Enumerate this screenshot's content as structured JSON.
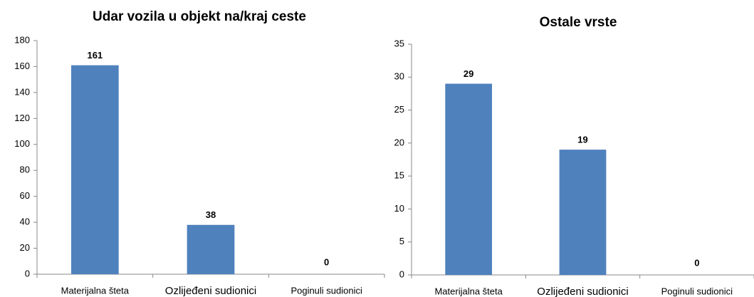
{
  "chart_data": [
    {
      "type": "bar",
      "title": "Udar vozila u objekt na/kraj ceste",
      "categories": [
        "Materijalna šteta",
        "Ozlijeđeni sudionici",
        "Poginuli sudionici"
      ],
      "values": [
        161,
        38,
        0
      ],
      "color": "#4f81bd",
      "ylim": [
        0,
        180
      ],
      "yticks": [
        0,
        20,
        40,
        60,
        80,
        100,
        120,
        140,
        160,
        180
      ],
      "grid": false
    },
    {
      "type": "bar",
      "title": "Ostale vrste",
      "categories": [
        "Materijalna šteta",
        "Ozlijeđeni sudionici",
        "Poginuli sudionici"
      ],
      "values": [
        29,
        19,
        0
      ],
      "color": "#4f81bd",
      "ylim": [
        0,
        35
      ],
      "yticks": [
        0,
        5,
        10,
        15,
        20,
        25,
        30,
        35
      ],
      "grid": false
    }
  ]
}
